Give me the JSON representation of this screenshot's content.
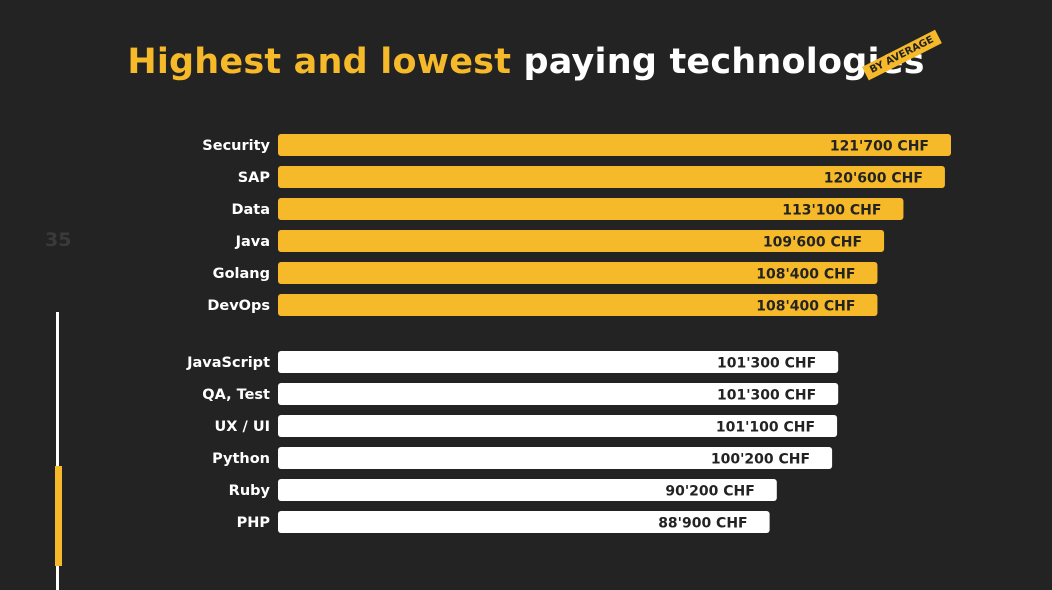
{
  "header": {
    "title_highlight": "Highest and lowest",
    "title_rest": "paying technologies",
    "badge": "BY AVERAGE"
  },
  "page_number": "35",
  "colors": {
    "background": "#232323",
    "highest_bar": "#F6B92A",
    "lowest_bar": "#FFFFFF",
    "label_text": "#FFFFFF",
    "value_text": "#232323"
  },
  "chart_data": {
    "type": "bar",
    "orientation": "horizontal",
    "unit": "CHF",
    "groups": [
      {
        "name": "highest",
        "items": [
          {
            "category": "Security",
            "value": 121700,
            "label": "121'700 CHF"
          },
          {
            "category": "SAP",
            "value": 120600,
            "label": "120'600 CHF"
          },
          {
            "category": "Data",
            "value": 113100,
            "label": "113'100 CHF"
          },
          {
            "category": "Java",
            "value": 109600,
            "label": "109'600 CHF"
          },
          {
            "category": "Golang",
            "value": 108400,
            "label": "108'400 CHF"
          },
          {
            "category": "DevOps",
            "value": 108400,
            "label": "108'400 CHF"
          }
        ]
      },
      {
        "name": "lowest",
        "items": [
          {
            "category": "JavaScript",
            "value": 101300,
            "label": "101'300 CHF"
          },
          {
            "category": "QA, Test",
            "value": 101300,
            "label": "101'300 CHF"
          },
          {
            "category": "UX / UI",
            "value": 101100,
            "label": "101'100 CHF"
          },
          {
            "category": "Python",
            "value": 100200,
            "label": "100'200 CHF"
          },
          {
            "category": "Ruby",
            "value": 90200,
            "label": "90'200 CHF"
          },
          {
            "category": "PHP",
            "value": 88900,
            "label": "88'900 CHF"
          }
        ]
      }
    ]
  }
}
